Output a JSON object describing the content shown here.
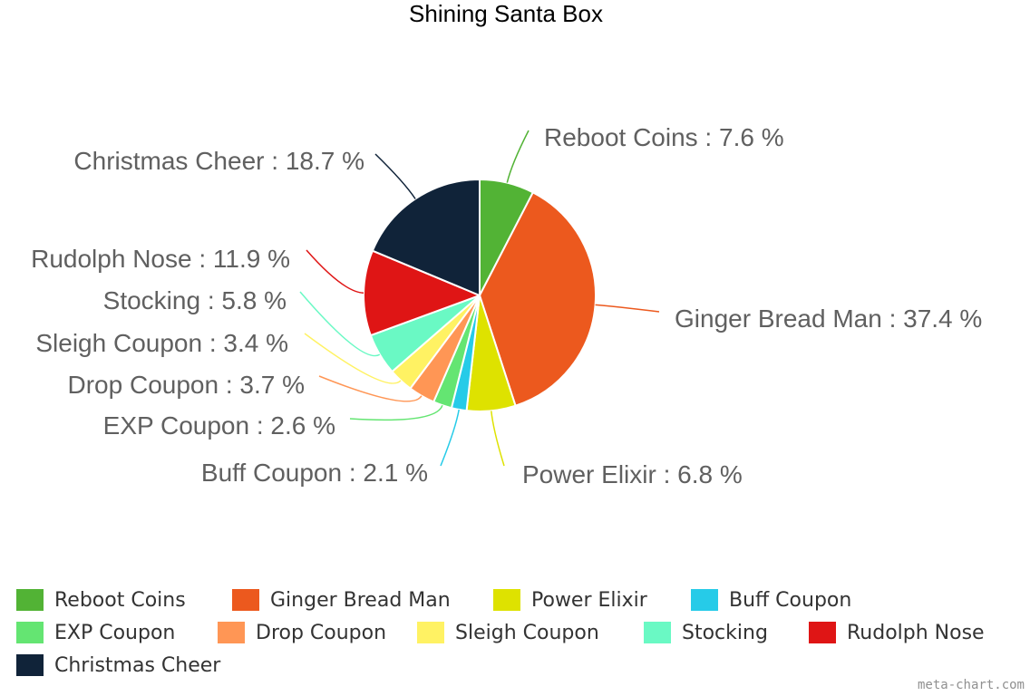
{
  "chart_data": {
    "type": "pie",
    "title": "Shining Santa Box",
    "categories": [
      "Reboot Coins",
      "Ginger Bread Man",
      "Power Elixir",
      "Buff Coupon",
      "EXP Coupon",
      "Drop Coupon",
      "Sleigh Coupon",
      "Stocking",
      "Rudolph Nose",
      "Christmas Cheer"
    ],
    "values": [
      7.6,
      37.4,
      6.8,
      2.1,
      2.6,
      3.7,
      3.4,
      5.8,
      11.9,
      18.7
    ],
    "unit": "%",
    "colors": [
      "#52b335",
      "#ec591e",
      "#dee200",
      "#26cbe8",
      "#64e572",
      "#ff9655",
      "#fff263",
      "#6af9c4",
      "#df1515",
      "#102339"
    ],
    "labels": [
      "Reboot Coins : 7.6 %",
      "Ginger Bread Man : 37.4 %",
      "Power Elixir : 6.8 %",
      "Buff Coupon : 2.1 %",
      "EXP Coupon : 2.6 %",
      "Drop Coupon : 3.7 %",
      "Sleigh Coupon : 3.4 %",
      "Stocking : 5.8 %",
      "Rudolph Nose : 11.9 %",
      "Christmas Cheer : 18.7 %"
    ],
    "start_angle": "12 o'clock, clockwise",
    "legend_position": "bottom"
  },
  "title": "Shining Santa Box",
  "legend": {
    "items": [
      {
        "label": "Reboot Coins",
        "color": "#52b335"
      },
      {
        "label": "Ginger Bread Man",
        "color": "#ec591e"
      },
      {
        "label": "Power Elixir",
        "color": "#dee200"
      },
      {
        "label": "Buff Coupon",
        "color": "#26cbe8"
      },
      {
        "label": "EXP Coupon",
        "color": "#64e572"
      },
      {
        "label": "Drop Coupon",
        "color": "#ff9655"
      },
      {
        "label": "Sleigh Coupon",
        "color": "#fff263"
      },
      {
        "label": "Stocking",
        "color": "#6af9c4"
      },
      {
        "label": "Rudolph Nose",
        "color": "#df1515"
      },
      {
        "label": "Christmas Cheer",
        "color": "#102339"
      }
    ]
  },
  "credit": "meta-chart.com"
}
